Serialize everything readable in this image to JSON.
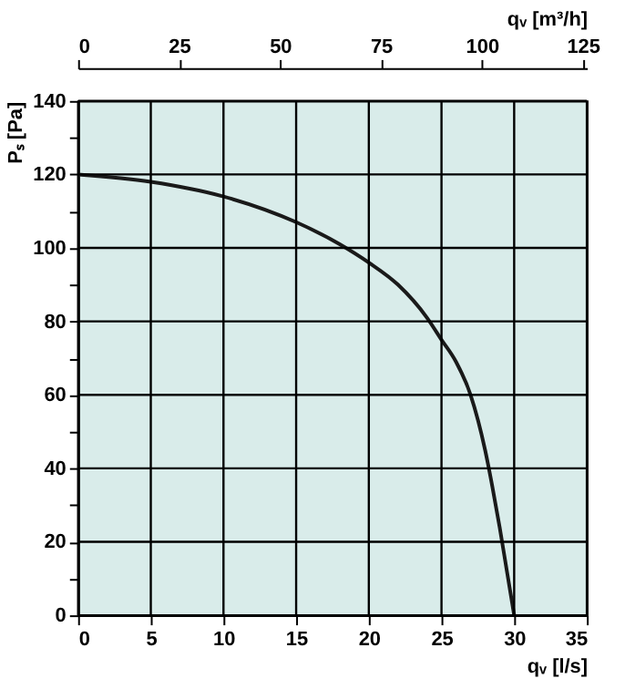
{
  "chart_data": {
    "type": "line",
    "xlabel": "qᵥ [l/s]",
    "ylabel": "Pₛ [Pa]",
    "x2label": "qᵥ [m³/h]",
    "x": [
      0,
      5,
      10,
      15,
      18,
      20,
      22,
      24,
      25,
      26,
      27,
      28,
      28.5,
      29,
      29.5,
      30
    ],
    "series": [
      {
        "color": "#1a1a1a",
        "values": [
          120,
          118,
          114,
          107,
          101,
          96,
          90,
          81,
          75,
          69,
          60,
          45,
          35,
          24,
          12,
          0
        ]
      }
    ],
    "xlim": [
      0,
      35
    ],
    "xticks": [
      0,
      5,
      10,
      15,
      20,
      25,
      30,
      35
    ],
    "ylim": [
      0,
      140
    ],
    "yticks": [
      0,
      {
        "value": 10,
        "label": null
      },
      20,
      {
        "value": 30,
        "label": null
      },
      40,
      {
        "value": 50,
        "label": null
      },
      60,
      {
        "value": 70,
        "label": null
      },
      80,
      {
        "value": 90,
        "label": null
      },
      100,
      {
        "value": 110,
        "label": null
      },
      120,
      {
        "value": 130,
        "label": null
      },
      140
    ],
    "x2lim": [
      0,
      126
    ],
    "x2ticks": [
      0,
      25,
      50,
      75,
      100,
      125
    ],
    "grid": true,
    "marker": "none",
    "line_style": "solid"
  }
}
